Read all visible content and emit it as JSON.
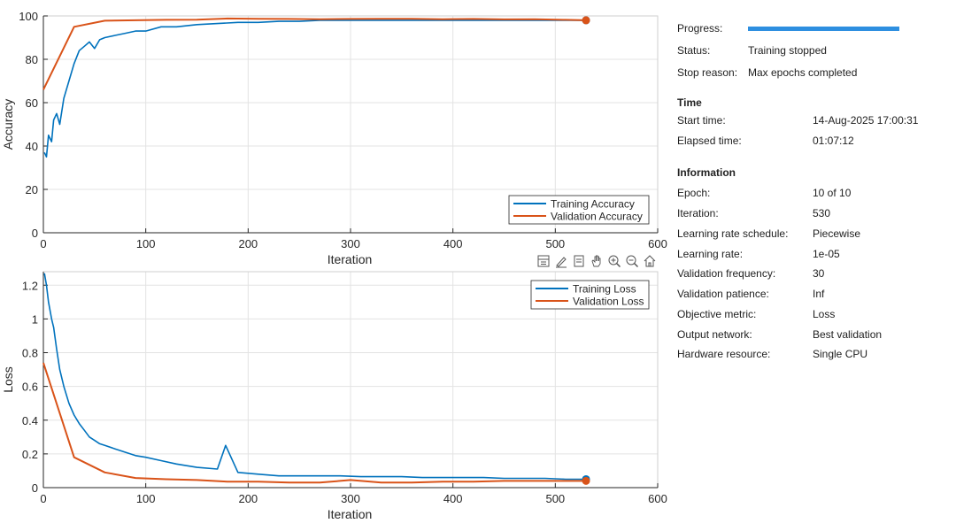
{
  "chart_data": [
    {
      "type": "line",
      "title": "",
      "xlabel": "Iteration",
      "ylabel": "Accuracy",
      "xlim": [
        0,
        600
      ],
      "ylim": [
        0,
        100
      ],
      "xticks": [
        0,
        100,
        200,
        300,
        400,
        500,
        600
      ],
      "yticks": [
        0,
        20,
        40,
        60,
        80,
        100
      ],
      "grid": true,
      "legend_position": "bottom-right",
      "series": [
        {
          "name": "Training Accuracy",
          "color": "#0072bd",
          "x": [
            1,
            3,
            5,
            8,
            10,
            13,
            16,
            20,
            25,
            30,
            35,
            40,
            45,
            50,
            55,
            60,
            70,
            80,
            90,
            100,
            115,
            130,
            150,
            170,
            190,
            210,
            230,
            250,
            270,
            290,
            310,
            330,
            350,
            370,
            390,
            410,
            430,
            450,
            470,
            490,
            510,
            530
          ],
          "y": [
            37,
            35,
            45,
            42,
            52,
            55,
            50,
            62,
            70,
            78,
            84,
            86,
            88,
            85,
            89,
            90,
            91,
            92,
            93,
            93,
            95,
            95,
            96,
            96.5,
            97,
            97,
            97.5,
            97.5,
            98,
            98,
            98,
            98,
            98,
            98,
            98,
            98,
            98,
            98,
            98,
            98,
            98,
            98
          ]
        },
        {
          "name": "Validation Accuracy",
          "color": "#d95319",
          "x": [
            0,
            30,
            60,
            90,
            120,
            150,
            180,
            210,
            240,
            270,
            300,
            330,
            360,
            390,
            420,
            450,
            480,
            510,
            530
          ],
          "y": [
            66,
            95,
            97.8,
            98,
            98.2,
            98.3,
            98.8,
            98.7,
            98.6,
            98.5,
            98.6,
            98.7,
            98.7,
            98.5,
            98.6,
            98.4,
            98.5,
            98.2,
            98
          ]
        }
      ]
    },
    {
      "type": "line",
      "title": "",
      "xlabel": "Iteration",
      "ylabel": "Loss",
      "xlim": [
        0,
        600
      ],
      "ylim": [
        0,
        1.28
      ],
      "xticks": [
        0,
        100,
        200,
        300,
        400,
        500,
        600
      ],
      "yticks": [
        0,
        0.2,
        0.4,
        0.6,
        0.8,
        1,
        1.2
      ],
      "grid": true,
      "legend_position": "top-right",
      "series": [
        {
          "name": "Training Loss",
          "color": "#0072bd",
          "x": [
            1,
            3,
            5,
            8,
            10,
            13,
            16,
            20,
            25,
            30,
            35,
            40,
            45,
            50,
            55,
            60,
            70,
            80,
            90,
            100,
            115,
            130,
            150,
            170,
            178,
            190,
            210,
            230,
            250,
            270,
            290,
            310,
            330,
            350,
            370,
            390,
            410,
            430,
            450,
            470,
            490,
            510,
            530
          ],
          "y": [
            1.27,
            1.2,
            1.1,
            1.0,
            0.95,
            0.82,
            0.7,
            0.6,
            0.5,
            0.43,
            0.38,
            0.34,
            0.3,
            0.28,
            0.26,
            0.25,
            0.23,
            0.21,
            0.19,
            0.18,
            0.16,
            0.14,
            0.12,
            0.11,
            0.25,
            0.09,
            0.08,
            0.07,
            0.07,
            0.07,
            0.07,
            0.065,
            0.065,
            0.065,
            0.06,
            0.06,
            0.06,
            0.06,
            0.055,
            0.055,
            0.055,
            0.05,
            0.05
          ]
        },
        {
          "name": "Validation Loss",
          "color": "#d95319",
          "x": [
            0,
            30,
            60,
            90,
            120,
            150,
            180,
            210,
            240,
            270,
            300,
            330,
            360,
            390,
            420,
            450,
            480,
            510,
            530
          ],
          "y": [
            0.74,
            0.18,
            0.09,
            0.057,
            0.05,
            0.045,
            0.035,
            0.035,
            0.03,
            0.03,
            0.045,
            0.03,
            0.03,
            0.035,
            0.035,
            0.04,
            0.04,
            0.04,
            0.04
          ]
        }
      ]
    }
  ],
  "toolbar": {
    "icons": [
      "export-icon",
      "brush-icon",
      "data-tips-icon",
      "pan-icon",
      "zoom-in-icon",
      "zoom-out-icon",
      "home-icon"
    ]
  },
  "info": {
    "progress_label": "Progress:",
    "progress_value": 1.0,
    "status_label": "Status:",
    "status_value": "Training stopped",
    "stop_reason_label": "Stop reason:",
    "stop_reason_value": "Max epochs completed",
    "time_heading": "Time",
    "start_time_label": "Start time:",
    "start_time_value": "14-Aug-2025 17:00:31",
    "elapsed_label": "Elapsed time:",
    "elapsed_value": "01:07:12",
    "information_heading": "Information",
    "epoch_label": "Epoch:",
    "epoch_value": "10 of 10",
    "iteration_label": "Iteration:",
    "iteration_value": "530",
    "lr_schedule_label": "Learning rate schedule:",
    "lr_schedule_value": "Piecewise",
    "lr_label": "Learning rate:",
    "lr_value": "1e-05",
    "val_freq_label": "Validation frequency:",
    "val_freq_value": "30",
    "val_patience_label": "Validation patience:",
    "val_patience_value": "Inf",
    "objective_label": "Objective metric:",
    "objective_value": "Loss",
    "output_label": "Output network:",
    "output_value": "Best validation",
    "hardware_label": "Hardware resource:",
    "hardware_value": "Single CPU"
  }
}
